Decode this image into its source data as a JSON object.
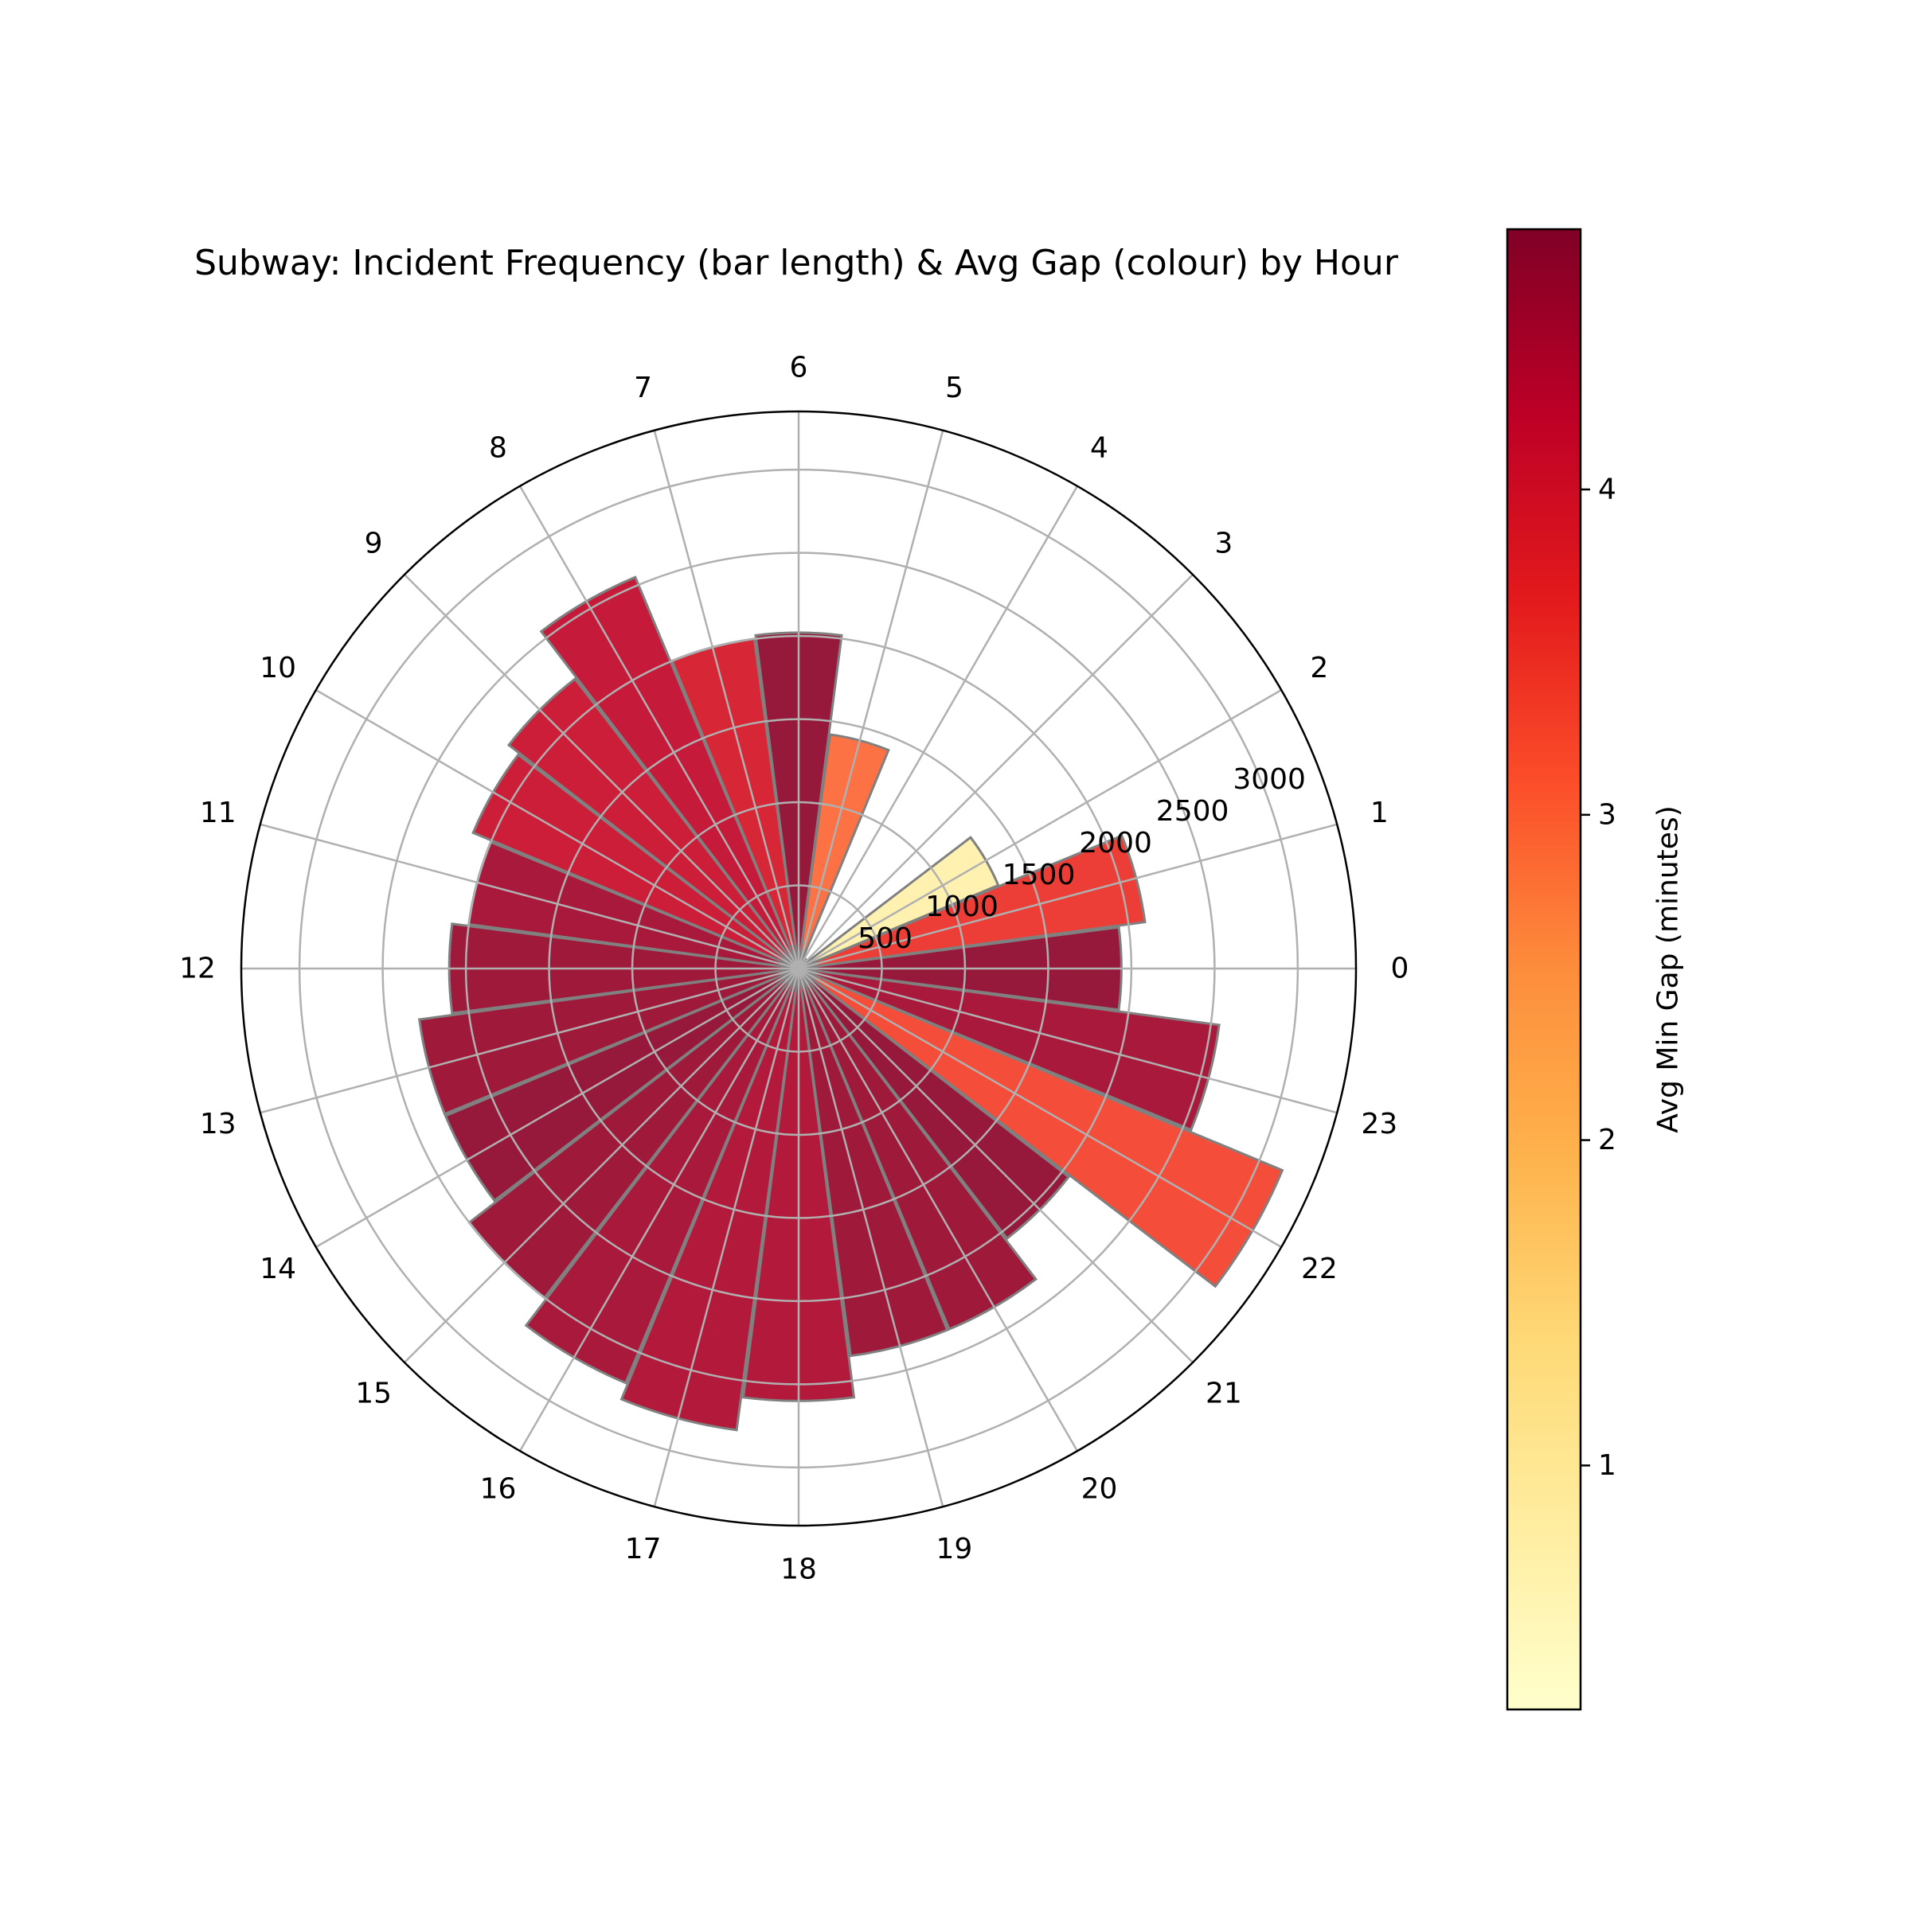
{
  "chart_data": {
    "type": "bar",
    "subtype": "polar",
    "title": "Subway: Incident Frequency (bar length) & Avg Gap (colour) by Hour",
    "categories": [
      "0",
      "1",
      "2",
      "3",
      "4",
      "5",
      "6",
      "7",
      "8",
      "9",
      "10",
      "11",
      "12",
      "13",
      "14",
      "15",
      "16",
      "17",
      "18",
      "19",
      "20",
      "21",
      "22",
      "23"
    ],
    "series": [
      {
        "values": [
          1940,
          2100,
          1300,
          70,
          60,
          1420,
          2020,
          2000,
          2550,
          2200,
          2120,
          2000,
          2100,
          2300,
          2300,
          2500,
          2700,
          2800,
          2600,
          2350,
          2350,
          2050,
          3150,
          2550
        ]
      }
    ],
    "color_values": [
      4.7,
      3.5,
      0.7,
      1.9,
      2.8,
      2.9,
      4.7,
      3.9,
      4.2,
      4.1,
      4.1,
      4.5,
      4.6,
      4.6,
      4.7,
      4.6,
      4.5,
      4.4,
      4.4,
      4.6,
      4.6,
      4.7,
      3.3,
      4.5
    ],
    "radial_ticks": [
      "500",
      "1000",
      "1500",
      "2000",
      "2500",
      "3000"
    ],
    "radial_tick_values": [
      500,
      1000,
      1500,
      2000,
      2500,
      3000
    ],
    "rlim": [
      0,
      3350
    ],
    "grid": true,
    "colorbar": {
      "label": "Avg Min Gap (minutes)",
      "ticks": [
        "1",
        "2",
        "3",
        "4"
      ],
      "tick_values": [
        1,
        2,
        3,
        4
      ],
      "range": [
        0.25,
        4.8
      ],
      "colormap": "YlOrRd",
      "colormap_stops": [
        "#ffffcc",
        "#ffeda0",
        "#fed976",
        "#feb24c",
        "#fd8d3c",
        "#fc4e2a",
        "#e31a1c",
        "#bd0026",
        "#800026"
      ]
    },
    "bar_edge_color": "#808080"
  }
}
